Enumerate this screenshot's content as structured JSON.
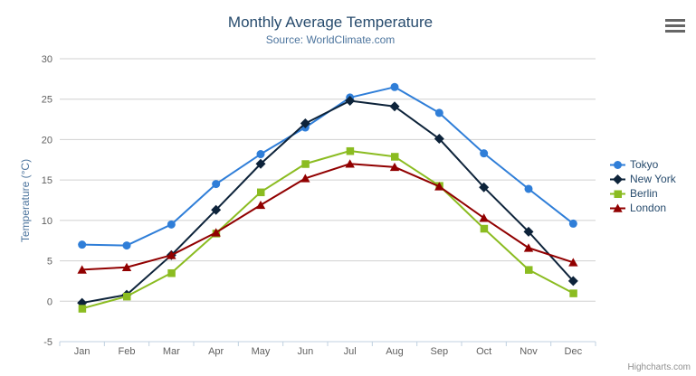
{
  "credits": "Highcharts.com",
  "export_menu": {
    "icon": "hamburger-icon"
  },
  "chart_data": {
    "type": "line",
    "title": "Monthly Average Temperature",
    "subtitle": "Source: WorldClimate.com",
    "xlabel": "",
    "ylabel": "Temperature (°C)",
    "categories": [
      "Jan",
      "Feb",
      "Mar",
      "Apr",
      "May",
      "Jun",
      "Jul",
      "Aug",
      "Sep",
      "Oct",
      "Nov",
      "Dec"
    ],
    "ylim": [
      -5,
      30
    ],
    "ytick_step": 5,
    "grid": true,
    "legend_position": "right",
    "series": [
      {
        "name": "Tokyo",
        "color": "#2f7ed8",
        "marker": "circle",
        "values": [
          7.0,
          6.9,
          9.5,
          14.5,
          18.2,
          21.5,
          25.2,
          26.5,
          23.3,
          18.3,
          13.9,
          9.6
        ]
      },
      {
        "name": "New York",
        "color": "#0d233a",
        "marker": "diamond",
        "values": [
          -0.2,
          0.8,
          5.7,
          11.3,
          17.0,
          22.0,
          24.8,
          24.1,
          20.1,
          14.1,
          8.6,
          2.5
        ]
      },
      {
        "name": "Berlin",
        "color": "#8bbc21",
        "marker": "square",
        "values": [
          -0.9,
          0.6,
          3.5,
          8.4,
          13.5,
          17.0,
          18.6,
          17.9,
          14.3,
          9.0,
          3.9,
          1.0
        ]
      },
      {
        "name": "London",
        "color": "#910000",
        "marker": "triangle",
        "values": [
          3.9,
          4.2,
          5.7,
          8.5,
          11.9,
          15.2,
          17.0,
          16.6,
          14.2,
          10.3,
          6.6,
          4.8
        ]
      }
    ],
    "axis_colors": {
      "grid": "#d0d0d0",
      "axis_line": "#c0d0e0",
      "labels": "#606060"
    }
  }
}
